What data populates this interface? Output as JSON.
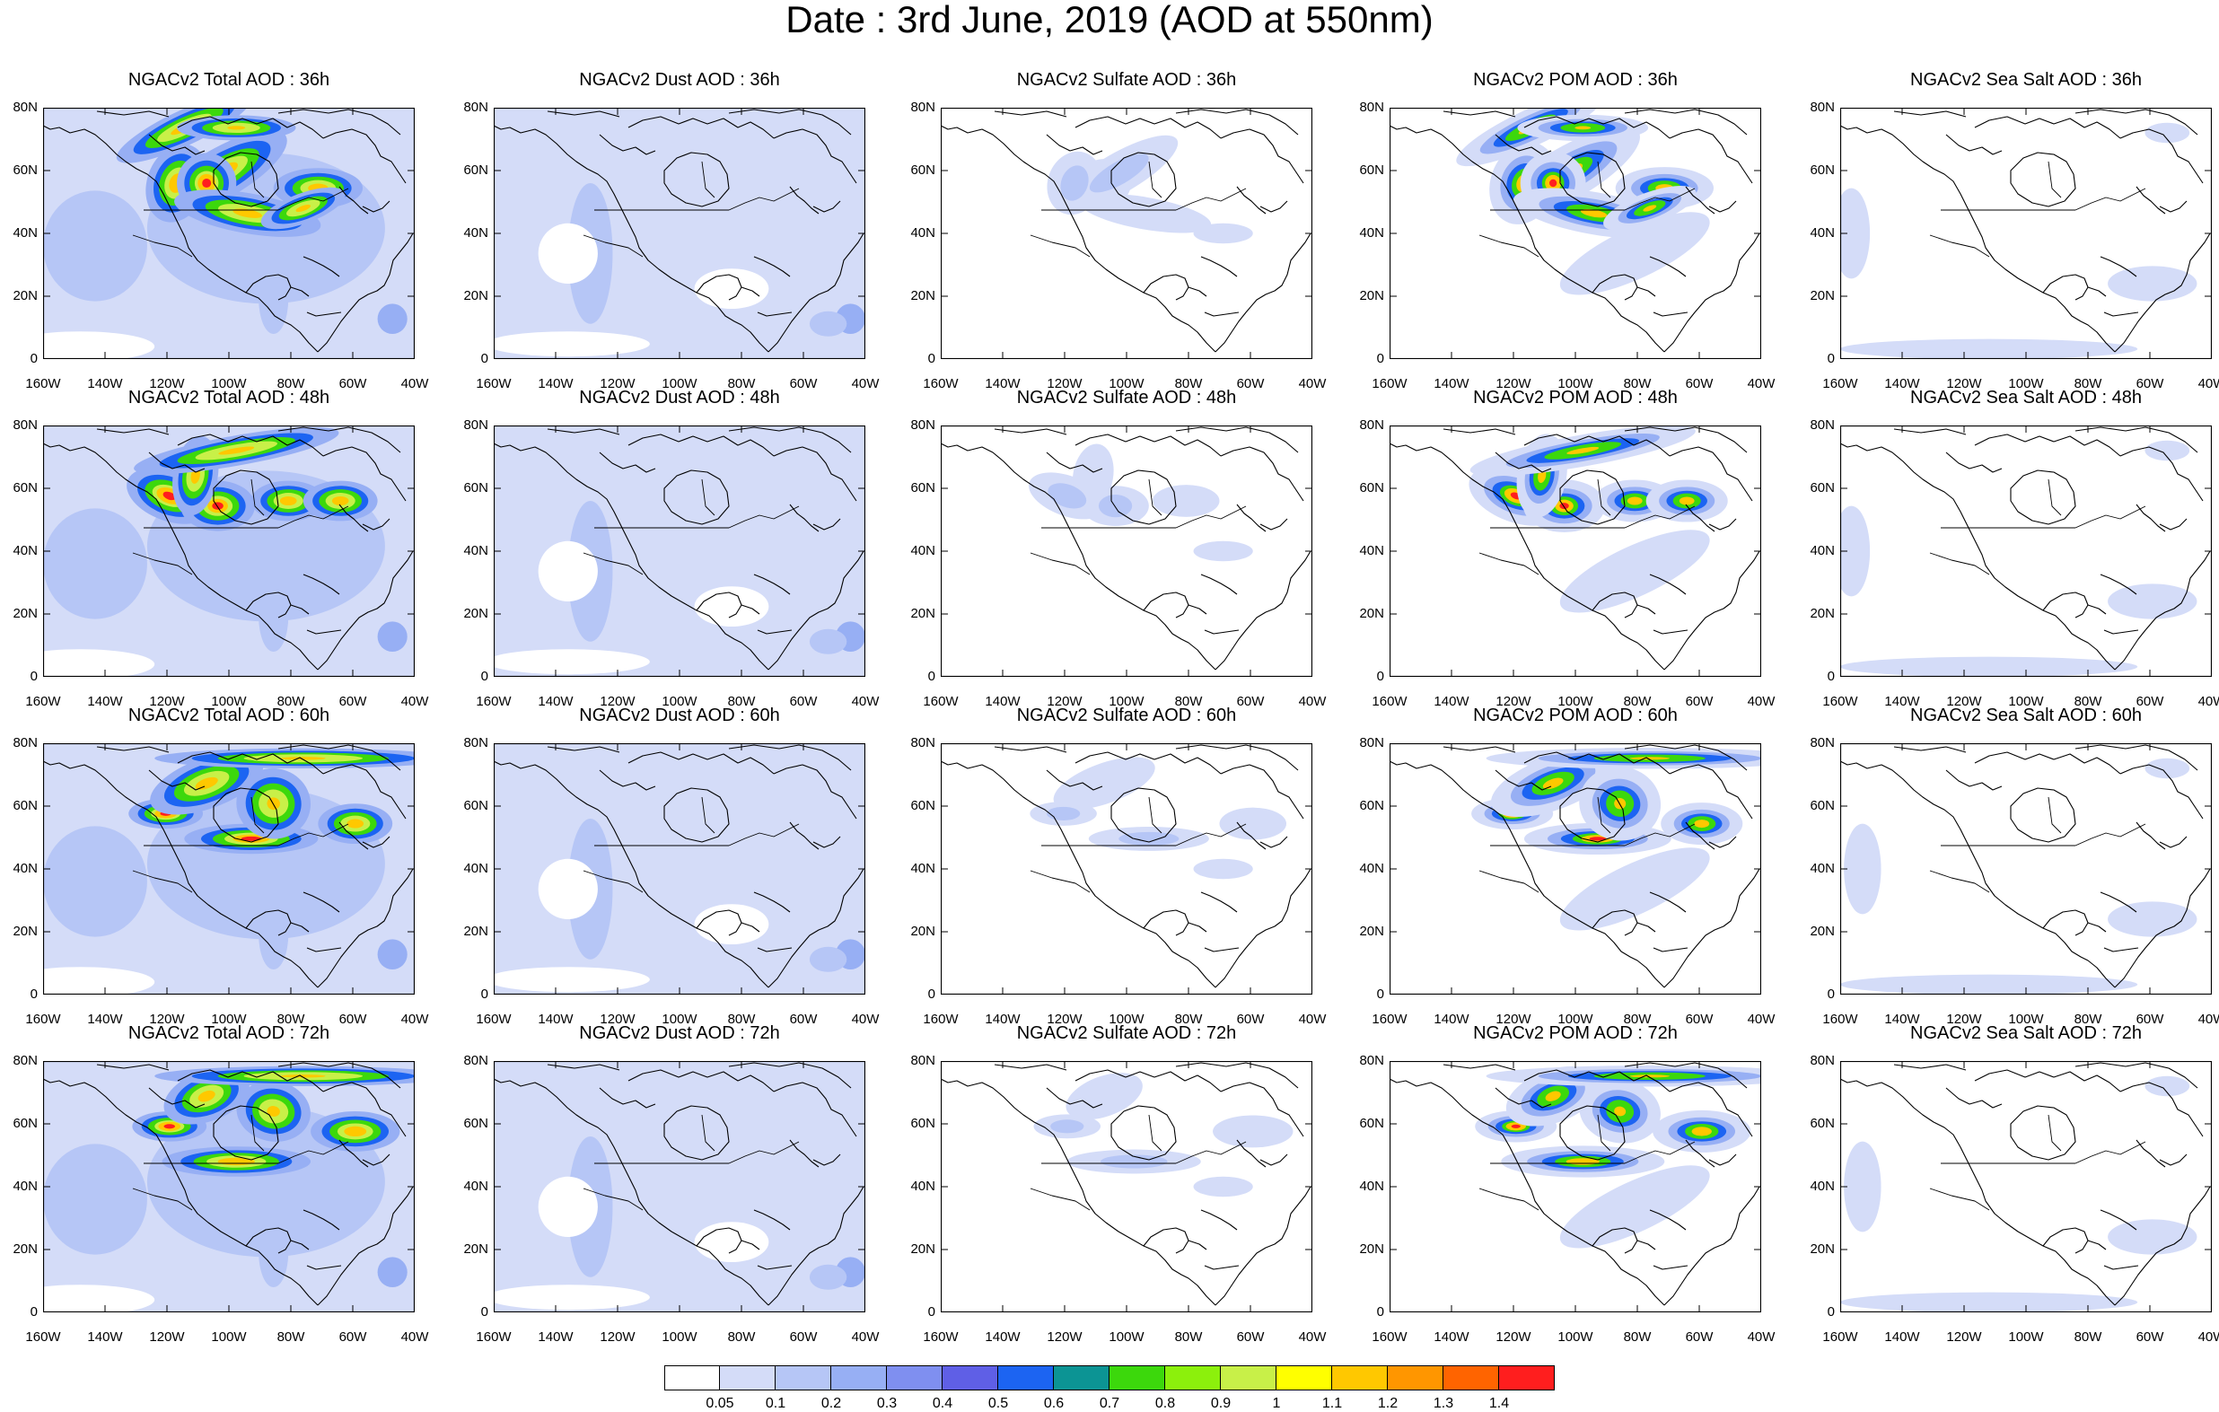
{
  "title": "Date : 3rd June, 2019 (AOD at 550nm)",
  "panels": [
    [
      "NGACv2 Total AOD : 36h",
      "NGACv2 Dust AOD : 36h",
      "NGACv2 Sulfate AOD : 36h",
      "NGACv2 POM AOD : 36h",
      "NGACv2 Sea Salt AOD : 36h"
    ],
    [
      "NGACv2 Total AOD : 48h",
      "NGACv2 Dust AOD : 48h",
      "NGACv2 Sulfate AOD : 48h",
      "NGACv2 POM AOD : 48h",
      "NGACv2 Sea Salt AOD : 48h"
    ],
    [
      "NGACv2 Total AOD : 60h",
      "NGACv2 Dust AOD : 60h",
      "NGACv2 Sulfate AOD : 60h",
      "NGACv2 POM AOD : 60h",
      "NGACv2 Sea Salt AOD : 60h"
    ],
    [
      "NGACv2 Total AOD : 72h",
      "NGACv2 Dust AOD : 72h",
      "NGACv2 Sulfate AOD : 72h",
      "NGACv2 POM AOD : 72h",
      "NGACv2 Sea Salt  AOD : 72h"
    ]
  ],
  "axes": {
    "y_ticks": [
      "80N",
      "60N",
      "40N",
      "20N",
      "0"
    ],
    "x_ticks": [
      "160W",
      "140W",
      "120W",
      "100W",
      "80W",
      "60W",
      "40W"
    ]
  },
  "colorbar": {
    "colors": [
      "#ffffff",
      "#d4dcf8",
      "#b6c6f6",
      "#97aff4",
      "#7f8ff0",
      "#5f5fe6",
      "#1c64f2",
      "#0c9494",
      "#3cd80c",
      "#8cf00c",
      "#c8f048",
      "#ffff00",
      "#ffc800",
      "#ff9600",
      "#ff6400",
      "#ff1e1e"
    ],
    "labels": [
      "0.05",
      "0.1",
      "0.2",
      "0.3",
      "0.4",
      "0.5",
      "0.6",
      "0.7",
      "0.8",
      "0.9",
      "1",
      "1.1",
      "1.2",
      "1.3",
      "1.4"
    ]
  }
}
